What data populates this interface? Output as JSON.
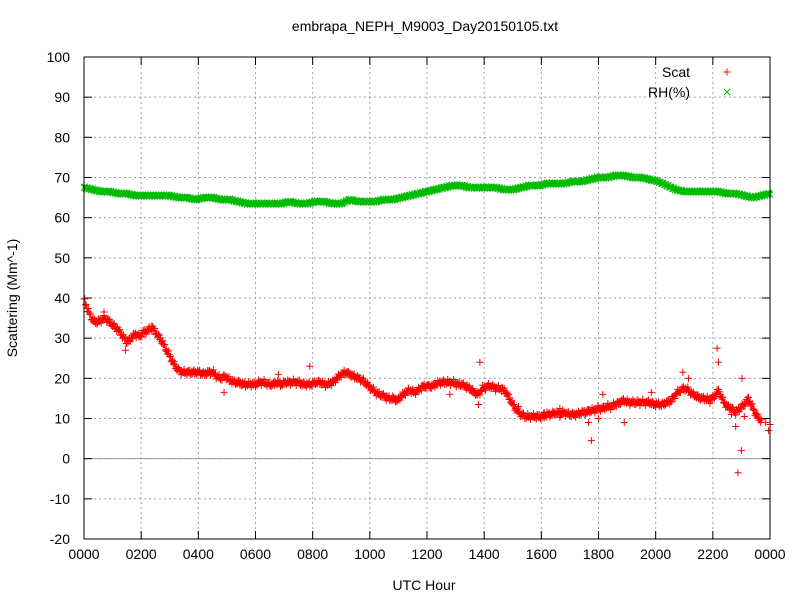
{
  "chart_data": {
    "type": "scatter",
    "title": "embrapa_NEPH_M9003_Day20150105.txt",
    "xlabel": "UTC Hour",
    "ylabel": "Scattering (Mm^-1)",
    "xlim": [
      0,
      2400
    ],
    "ylim": [
      -20,
      100
    ],
    "x_ticks": [
      "0000",
      "0200",
      "0400",
      "0600",
      "0800",
      "1000",
      "1200",
      "1400",
      "1600",
      "1800",
      "2000",
      "2200",
      "0000"
    ],
    "y_ticks": [
      "-20",
      "-10",
      "0",
      "10",
      "20",
      "30",
      "40",
      "50",
      "60",
      "70",
      "80",
      "90",
      "100"
    ],
    "grid": true,
    "legend_position": "top-right",
    "colors": {
      "scat": "#ff0000",
      "rh": "#00bb00",
      "zero_line": "#a0a0a0"
    },
    "series": [
      {
        "name": "Scat",
        "marker": "plus",
        "points": [
          [
            0,
            39.5
          ],
          [
            5,
            39.0
          ],
          [
            10,
            37.5
          ],
          [
            20,
            36.0
          ],
          [
            30,
            34.5
          ],
          [
            45,
            34.0
          ],
          [
            60,
            34.5
          ],
          [
            75,
            35.0
          ],
          [
            90,
            34.0
          ],
          [
            105,
            33.0
          ],
          [
            120,
            32.0
          ],
          [
            135,
            30.5
          ],
          [
            150,
            29.0
          ],
          [
            165,
            30.0
          ],
          [
            180,
            31.0
          ],
          [
            195,
            30.5
          ],
          [
            210,
            31.5
          ],
          [
            225,
            32.0
          ],
          [
            240,
            32.5
          ],
          [
            255,
            31.0
          ],
          [
            270,
            29.5
          ],
          [
            285,
            27.5
          ],
          [
            300,
            25.5
          ],
          [
            315,
            23.5
          ],
          [
            330,
            22.0
          ],
          [
            345,
            21.5
          ],
          [
            360,
            21.5
          ],
          [
            375,
            21.5
          ],
          [
            390,
            21.5
          ],
          [
            405,
            21.5
          ],
          [
            420,
            21.0
          ],
          [
            435,
            21.5
          ],
          [
            450,
            21.5
          ],
          [
            465,
            20.5
          ],
          [
            480,
            20.0
          ],
          [
            495,
            20.5
          ],
          [
            510,
            19.5
          ],
          [
            525,
            19.0
          ],
          [
            540,
            19.0
          ],
          [
            555,
            18.5
          ],
          [
            570,
            18.5
          ],
          [
            585,
            18.5
          ],
          [
            600,
            18.5
          ],
          [
            615,
            19.0
          ],
          [
            630,
            19.0
          ],
          [
            645,
            18.5
          ],
          [
            660,
            18.5
          ],
          [
            675,
            19.0
          ],
          [
            690,
            18.5
          ],
          [
            705,
            19.0
          ],
          [
            720,
            19.0
          ],
          [
            735,
            19.0
          ],
          [
            750,
            19.0
          ],
          [
            765,
            18.5
          ],
          [
            780,
            18.5
          ],
          [
            795,
            18.5
          ],
          [
            810,
            19.0
          ],
          [
            825,
            19.0
          ],
          [
            840,
            18.5
          ],
          [
            855,
            18.5
          ],
          [
            870,
            19.0
          ],
          [
            885,
            20.0
          ],
          [
            900,
            21.0
          ],
          [
            915,
            21.5
          ],
          [
            930,
            21.0
          ],
          [
            945,
            20.5
          ],
          [
            960,
            20.0
          ],
          [
            975,
            19.5
          ],
          [
            990,
            18.5
          ],
          [
            1005,
            17.5
          ],
          [
            1020,
            16.5
          ],
          [
            1035,
            16.0
          ],
          [
            1050,
            15.5
          ],
          [
            1065,
            15.0
          ],
          [
            1080,
            15.0
          ],
          [
            1095,
            14.5
          ],
          [
            1110,
            15.5
          ],
          [
            1125,
            16.5
          ],
          [
            1140,
            17.0
          ],
          [
            1155,
            16.5
          ],
          [
            1170,
            17.0
          ],
          [
            1185,
            18.0
          ],
          [
            1200,
            18.0
          ],
          [
            1215,
            18.0
          ],
          [
            1230,
            18.5
          ],
          [
            1245,
            19.0
          ],
          [
            1260,
            19.0
          ],
          [
            1275,
            19.0
          ],
          [
            1290,
            19.0
          ],
          [
            1305,
            18.5
          ],
          [
            1320,
            18.5
          ],
          [
            1335,
            18.0
          ],
          [
            1350,
            17.5
          ],
          [
            1365,
            16.5
          ],
          [
            1380,
            16.0
          ],
          [
            1395,
            17.5
          ],
          [
            1410,
            18.0
          ],
          [
            1425,
            18.0
          ],
          [
            1440,
            17.5
          ],
          [
            1455,
            17.5
          ],
          [
            1470,
            17.0
          ],
          [
            1485,
            15.5
          ],
          [
            1500,
            13.5
          ],
          [
            1515,
            12.0
          ],
          [
            1530,
            11.0
          ],
          [
            1545,
            10.5
          ],
          [
            1560,
            10.5
          ],
          [
            1575,
            10.5
          ],
          [
            1590,
            10.5
          ],
          [
            1605,
            10.5
          ],
          [
            1620,
            11.0
          ],
          [
            1635,
            11.0
          ],
          [
            1650,
            11.5
          ],
          [
            1665,
            11.0
          ],
          [
            1680,
            11.5
          ],
          [
            1695,
            11.0
          ],
          [
            1710,
            11.0
          ],
          [
            1725,
            11.0
          ],
          [
            1740,
            11.5
          ],
          [
            1755,
            11.5
          ],
          [
            1770,
            12.0
          ],
          [
            1785,
            12.0
          ],
          [
            1800,
            12.5
          ],
          [
            1815,
            12.5
          ],
          [
            1830,
            13.0
          ],
          [
            1845,
            13.0
          ],
          [
            1860,
            13.5
          ],
          [
            1875,
            14.0
          ],
          [
            1890,
            14.5
          ],
          [
            1905,
            14.0
          ],
          [
            1920,
            14.0
          ],
          [
            1935,
            14.0
          ],
          [
            1950,
            14.0
          ],
          [
            1965,
            14.0
          ],
          [
            1980,
            14.0
          ],
          [
            1995,
            13.5
          ],
          [
            2010,
            13.5
          ],
          [
            2025,
            13.5
          ],
          [
            2040,
            14.0
          ],
          [
            2055,
            14.5
          ],
          [
            2070,
            16.0
          ],
          [
            2085,
            17.0
          ],
          [
            2100,
            17.5
          ],
          [
            2115,
            17.0
          ],
          [
            2130,
            16.0
          ],
          [
            2145,
            15.5
          ],
          [
            2160,
            15.0
          ],
          [
            2175,
            15.0
          ],
          [
            2190,
            14.5
          ],
          [
            2205,
            15.5
          ],
          [
            2220,
            17.0
          ],
          [
            2235,
            14.5
          ],
          [
            2250,
            13.0
          ],
          [
            2265,
            12.5
          ],
          [
            2280,
            11.5
          ],
          [
            2295,
            12.5
          ],
          [
            2310,
            13.5
          ],
          [
            2325,
            15.0
          ],
          [
            2340,
            12.5
          ],
          [
            2355,
            10.5
          ],
          [
            2370,
            9.5
          ],
          [
            2385,
            9.0
          ],
          [
            2400,
            8.5
          ],
          [
            70,
            36.5
          ],
          [
            145,
            27.0
          ],
          [
            235,
            33.0
          ],
          [
            490,
            16.5
          ],
          [
            680,
            21.0
          ],
          [
            790,
            23.0
          ],
          [
            1380,
            13.5
          ],
          [
            1385,
            24.0
          ],
          [
            1520,
            13.0
          ],
          [
            1610,
            11.5
          ],
          [
            1665,
            12.5
          ],
          [
            1765,
            9.0
          ],
          [
            1775,
            4.5
          ],
          [
            1800,
            10.0
          ],
          [
            1815,
            16.0
          ],
          [
            1890,
            9.0
          ],
          [
            1985,
            16.5
          ],
          [
            2095,
            21.5
          ],
          [
            2115,
            20.0
          ],
          [
            2215,
            27.5
          ],
          [
            2220,
            24.0
          ],
          [
            2250,
            13.0
          ],
          [
            2265,
            11.0
          ],
          [
            2280,
            8.0
          ],
          [
            2288,
            -3.5
          ],
          [
            2300,
            2.0
          ],
          [
            2302,
            20.0
          ],
          [
            2310,
            10.5
          ],
          [
            2395,
            7.0
          ],
          [
            1280,
            16.0
          ]
        ]
      },
      {
        "name": "RH(%)",
        "marker": "cross",
        "points": [
          [
            0,
            67.5
          ],
          [
            30,
            67.0
          ],
          [
            60,
            66.5
          ],
          [
            90,
            66.5
          ],
          [
            120,
            66.0
          ],
          [
            150,
            66.0
          ],
          [
            180,
            65.5
          ],
          [
            210,
            65.5
          ],
          [
            240,
            65.5
          ],
          [
            270,
            65.5
          ],
          [
            300,
            65.5
          ],
          [
            330,
            65.0
          ],
          [
            360,
            65.0
          ],
          [
            390,
            64.5
          ],
          [
            420,
            65.0
          ],
          [
            450,
            65.0
          ],
          [
            480,
            64.5
          ],
          [
            510,
            64.5
          ],
          [
            540,
            64.0
          ],
          [
            570,
            63.5
          ],
          [
            600,
            63.5
          ],
          [
            630,
            63.5
          ],
          [
            660,
            63.5
          ],
          [
            690,
            63.5
          ],
          [
            720,
            64.0
          ],
          [
            750,
            63.5
          ],
          [
            780,
            63.5
          ],
          [
            810,
            64.0
          ],
          [
            840,
            64.0
          ],
          [
            870,
            63.5
          ],
          [
            900,
            63.5
          ],
          [
            930,
            64.5
          ],
          [
            960,
            64.0
          ],
          [
            990,
            64.0
          ],
          [
            1020,
            64.0
          ],
          [
            1050,
            64.5
          ],
          [
            1080,
            64.5
          ],
          [
            1110,
            65.0
          ],
          [
            1140,
            65.5
          ],
          [
            1170,
            66.0
          ],
          [
            1200,
            66.5
          ],
          [
            1230,
            67.0
          ],
          [
            1260,
            67.5
          ],
          [
            1290,
            68.0
          ],
          [
            1320,
            68.0
          ],
          [
            1350,
            67.5
          ],
          [
            1380,
            67.5
          ],
          [
            1410,
            67.5
          ],
          [
            1440,
            67.5
          ],
          [
            1470,
            67.0
          ],
          [
            1500,
            67.0
          ],
          [
            1530,
            67.5
          ],
          [
            1560,
            68.0
          ],
          [
            1590,
            68.0
          ],
          [
            1620,
            68.5
          ],
          [
            1650,
            68.5
          ],
          [
            1680,
            68.5
          ],
          [
            1710,
            69.0
          ],
          [
            1740,
            69.0
          ],
          [
            1770,
            69.5
          ],
          [
            1800,
            70.0
          ],
          [
            1830,
            70.0
          ],
          [
            1860,
            70.5
          ],
          [
            1890,
            70.5
          ],
          [
            1920,
            70.0
          ],
          [
            1950,
            70.0
          ],
          [
            1980,
            69.5
          ],
          [
            2010,
            69.0
          ],
          [
            2040,
            68.0
          ],
          [
            2070,
            67.0
          ],
          [
            2100,
            66.5
          ],
          [
            2130,
            66.5
          ],
          [
            2160,
            66.5
          ],
          [
            2190,
            66.5
          ],
          [
            2220,
            66.5
          ],
          [
            2250,
            66.0
          ],
          [
            2280,
            66.0
          ],
          [
            2310,
            65.5
          ],
          [
            2340,
            65.0
          ],
          [
            2370,
            65.5
          ],
          [
            2400,
            66.0
          ]
        ]
      }
    ]
  }
}
